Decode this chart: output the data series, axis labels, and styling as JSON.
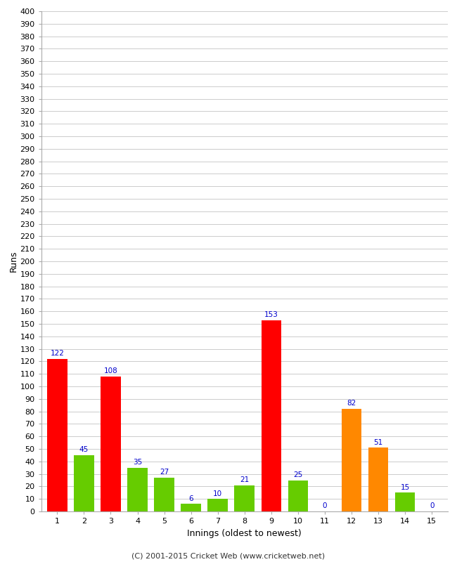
{
  "xlabel": "Innings (oldest to newest)",
  "ylabel": "Runs",
  "categories": [
    "1",
    "2",
    "3",
    "4",
    "5",
    "6",
    "7",
    "8",
    "9",
    "10",
    "11",
    "12",
    "13",
    "14",
    "15"
  ],
  "values": [
    122,
    45,
    108,
    35,
    27,
    6,
    10,
    21,
    153,
    25,
    0,
    82,
    51,
    15,
    0
  ],
  "bar_colors": [
    "#ff0000",
    "#66cc00",
    "#ff0000",
    "#66cc00",
    "#66cc00",
    "#66cc00",
    "#66cc00",
    "#66cc00",
    "#ff0000",
    "#66cc00",
    "#66cc00",
    "#ff8800",
    "#ff8800",
    "#66cc00",
    "#66cc00"
  ],
  "label_color": "#0000cc",
  "label_fontsize": 7.5,
  "ylim": [
    0,
    400
  ],
  "ytick_step": 10,
  "background_color": "#ffffff",
  "grid_color": "#cccccc",
  "footer": "(C) 2001-2015 Cricket Web (www.cricketweb.net)"
}
